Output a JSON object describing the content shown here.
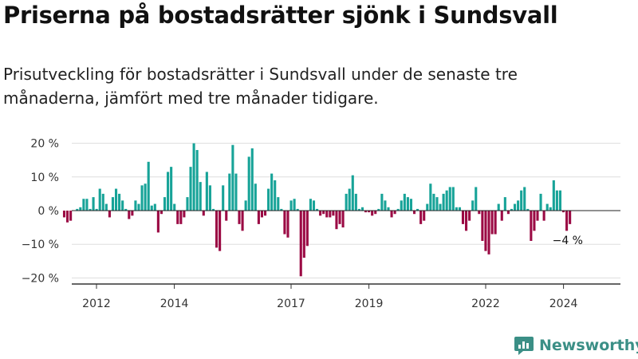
{
  "title": "Priserna på bostadsrätter sjönk i Sundsvall",
  "subtitle": "Prisutveckling för bostadsrätter i Sundsvall under de senaste tre månaderna, jämfört med tre månader tidigare.",
  "brand": {
    "name": "Newsworthy",
    "color": "#3b8f86"
  },
  "colors": {
    "positive": "#17a398",
    "negative": "#9b0a44",
    "grid": "#dddddd",
    "axis": "#333333"
  },
  "chart_data": {
    "type": "bar",
    "xlabel": "",
    "ylabel": "",
    "ylim": [
      -22,
      22
    ],
    "y_ticks": [
      20,
      10,
      0,
      -10,
      -20
    ],
    "y_tick_labels": [
      "20 %",
      "10 %",
      "0 %",
      "−10 %",
      "−20 %"
    ],
    "x_ticks": [
      2012,
      2014,
      2017,
      2019,
      2022,
      2024
    ],
    "x_tick_labels": [
      "2012",
      "2014",
      "2017",
      "2019",
      "2022",
      "2024"
    ],
    "x_start": 2011.17,
    "x_step": 0.0833,
    "values": [
      -2,
      -3.5,
      -3,
      0,
      0.5,
      1,
      3.5,
      3.5,
      0.5,
      4,
      0.5,
      6.5,
      5,
      2,
      -2,
      4,
      6.5,
      5,
      3,
      0.5,
      -2.5,
      -1.5,
      3,
      2,
      7.5,
      8,
      14.5,
      1.5,
      2,
      -6.5,
      -1,
      4,
      11.5,
      13,
      2,
      -4,
      -4,
      -2,
      4,
      13,
      20,
      18,
      8.5,
      -1.5,
      11.5,
      7.5,
      0.5,
      -11,
      -12,
      7.5,
      -3,
      11,
      19.5,
      11,
      -4,
      -6,
      3,
      16,
      18.5,
      8,
      -4,
      -2,
      -1.5,
      6.5,
      11,
      9,
      4,
      0.5,
      -7,
      -8,
      3,
      3.5,
      0.5,
      -19.5,
      -14,
      -10.5,
      3.5,
      3,
      0.5,
      -1.5,
      -1,
      -2,
      -2,
      -1.5,
      -5.5,
      -4,
      -5,
      5,
      6.5,
      10.5,
      5,
      0.5,
      1,
      -0.5,
      -0.5,
      -1.5,
      -1,
      0.5,
      5,
      3,
      1,
      -2,
      -1,
      0.5,
      3,
      5,
      4,
      3.5,
      -1,
      0.5,
      -4,
      -3,
      2,
      8,
      5,
      4,
      2,
      5,
      6,
      7,
      7,
      1,
      1,
      -4,
      -6,
      -3,
      3,
      7,
      -1,
      -9,
      -12,
      -13,
      -7,
      -7,
      2,
      -3,
      4,
      -1,
      0.5,
      2,
      3,
      6,
      7,
      0.5,
      -9,
      -6,
      -3,
      5,
      -3,
      2,
      1,
      9,
      6,
      6,
      -0.5,
      -6,
      -4
    ],
    "annotation": {
      "text": "−4 %",
      "value": -4
    }
  }
}
